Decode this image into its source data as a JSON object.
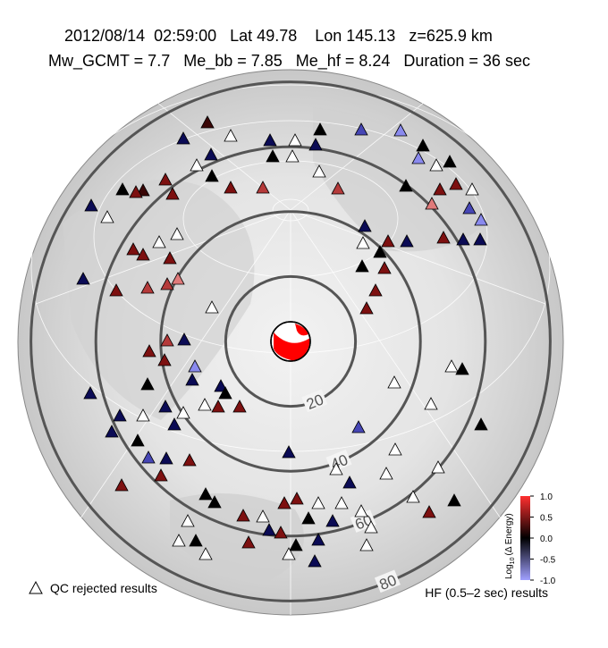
{
  "header": {
    "line1": "2012/08/14  02:59:00   Lat 49.78    Lon 145.13   z=625.9 km",
    "line2": "Mw_GCMT = 7.7   Me_bb = 7.85   Me_hf = 8.24   Duration = 36 sec"
  },
  "distance_rings": [
    20,
    40,
    60,
    80
  ],
  "colorbar": {
    "label_base": "Log",
    "label_subscript": "10",
    "label_rest": "(Δ Energy)",
    "ylim": [
      -1,
      1
    ],
    "yticks": [
      {
        "value": 1,
        "label": "1.0"
      },
      0.5,
      {
        "value": 0,
        "label": "0.0"
      },
      -0.5,
      {
        "value": -1,
        "label": "-1.0"
      }
    ]
  },
  "legend": {
    "qc": "QC rejected results",
    "hf": "HF (0.5–2 sec) results"
  }
}
